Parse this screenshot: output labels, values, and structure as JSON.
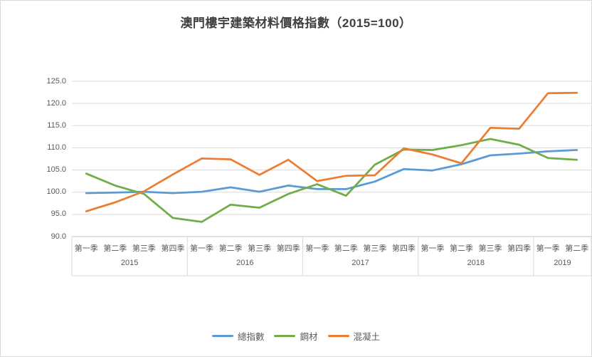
{
  "chart_data": {
    "type": "line",
    "title": "澳門樓宇建築材料價格指數（2015=100）",
    "ylim": [
      90,
      125
    ],
    "y_tick_step": 5,
    "y_ticks": [
      "90.0",
      "95.0",
      "100.0",
      "105.0",
      "110.0",
      "115.0",
      "120.0",
      "125.0"
    ],
    "grid": true,
    "legend_position": "bottom",
    "x_groups": [
      {
        "year": "2015",
        "quarters": [
          "第一季",
          "第二季",
          "第三季",
          "第四季"
        ]
      },
      {
        "year": "2016",
        "quarters": [
          "第一季",
          "第二季",
          "第三季",
          "第四季"
        ]
      },
      {
        "year": "2017",
        "quarters": [
          "第一季",
          "第二季",
          "第三季",
          "第四季"
        ]
      },
      {
        "year": "2018",
        "quarters": [
          "第一季",
          "第二季",
          "第三季",
          "第四季"
        ]
      },
      {
        "year": "2019",
        "quarters": [
          "第一季",
          "第二季"
        ]
      }
    ],
    "series": [
      {
        "name": "總指數",
        "key": "total-index",
        "color": "#5B9BD5",
        "values": [
          99.8,
          99.9,
          100.1,
          99.8,
          100.1,
          101.1,
          100.1,
          101.5,
          100.7,
          100.7,
          102.4,
          105.2,
          104.9,
          106.3,
          108.3,
          108.7,
          109.2,
          109.5
        ]
      },
      {
        "name": "鋼材",
        "key": "steel",
        "color": "#70AD47",
        "values": [
          104.2,
          101.5,
          99.6,
          94.2,
          93.3,
          97.2,
          96.5,
          99.6,
          101.8,
          99.2,
          106.2,
          109.6,
          109.5,
          110.6,
          112.0,
          110.7,
          107.7,
          107.3
        ]
      },
      {
        "name": "混凝土",
        "key": "concrete",
        "color": "#ED7D31",
        "values": [
          95.7,
          97.7,
          100.2,
          104.0,
          107.6,
          107.4,
          103.9,
          107.3,
          102.5,
          103.7,
          103.8,
          109.9,
          108.5,
          106.5,
          114.5,
          114.3,
          122.3,
          122.4
        ]
      }
    ]
  }
}
